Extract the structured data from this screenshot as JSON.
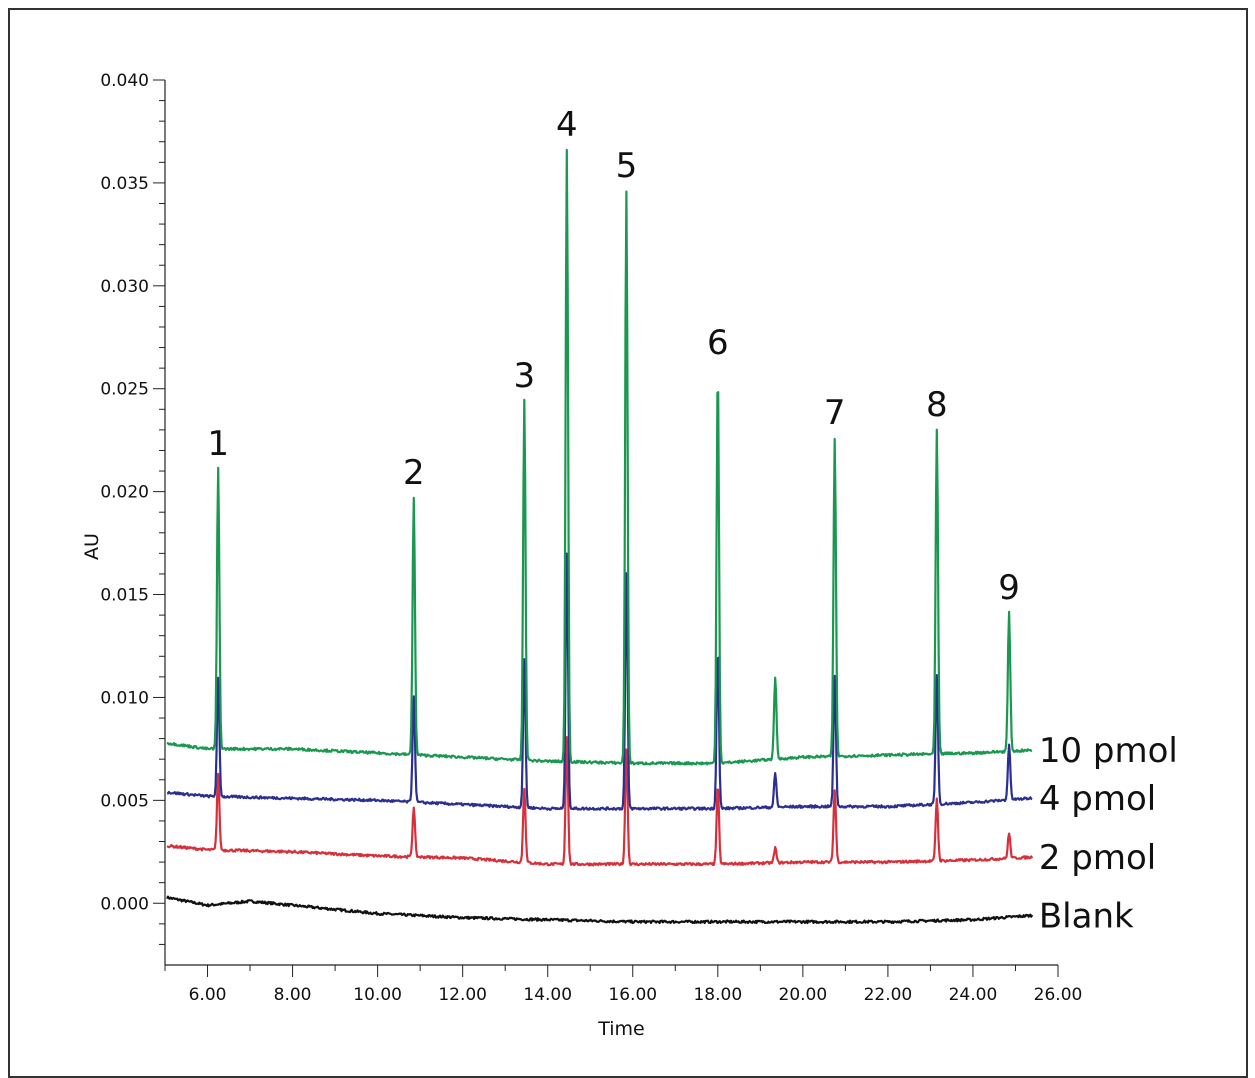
{
  "chart_data": {
    "type": "line",
    "xlabel": "Time",
    "ylabel": "AU",
    "xlim": [
      5.0,
      26.0
    ],
    "ylim": [
      -0.003,
      0.04
    ],
    "xticks": [
      "6.00",
      "8.00",
      "10.00",
      "12.00",
      "14.00",
      "16.00",
      "18.00",
      "20.00",
      "22.00",
      "24.00",
      "26.00"
    ],
    "yticks": [
      "0.000",
      "0.005",
      "0.010",
      "0.015",
      "0.020",
      "0.025",
      "0.030",
      "0.035",
      "0.040"
    ],
    "grid": false,
    "legend": "inline labels at right end of each trace",
    "peak_labels": [
      {
        "label": "1",
        "time": 6.25,
        "height_10pmol": 0.0211
      },
      {
        "label": "2",
        "time": 10.85,
        "height_10pmol": 0.0197
      },
      {
        "label": "3",
        "time": 13.45,
        "height_10pmol": 0.0244
      },
      {
        "label": "4",
        "time": 14.45,
        "height_10pmol": 0.0366
      },
      {
        "label": "5",
        "time": 15.85,
        "height_10pmol": 0.0346
      },
      {
        "label": "6",
        "time": 18.0,
        "height_10pmol": 0.026
      },
      {
        "label": "7",
        "time": 20.75,
        "height_10pmol": 0.0226
      },
      {
        "label": "8",
        "time": 23.15,
        "height_10pmol": 0.023
      },
      {
        "label": "9",
        "time": 24.85,
        "height_10pmol": 0.0141
      }
    ],
    "series": [
      {
        "name": "10 pmol",
        "color": "#1a9850",
        "baseline": [
          [
            5.0,
            0.0078
          ],
          [
            6.0,
            0.0075
          ],
          [
            8.0,
            0.0075
          ],
          [
            10.0,
            0.0073
          ],
          [
            12.0,
            0.0071
          ],
          [
            14.0,
            0.0069
          ],
          [
            16.0,
            0.0068
          ],
          [
            18.0,
            0.0068
          ],
          [
            20.0,
            0.0071
          ],
          [
            22.0,
            0.0072
          ],
          [
            24.0,
            0.0073
          ],
          [
            26.0,
            0.0075
          ]
        ],
        "peaks": [
          [
            6.25,
            0.0211
          ],
          [
            10.85,
            0.0197
          ],
          [
            13.45,
            0.0244
          ],
          [
            14.45,
            0.0366
          ],
          [
            15.85,
            0.0346
          ],
          [
            18.0,
            0.026
          ],
          [
            19.35,
            0.011
          ],
          [
            20.75,
            0.0226
          ],
          [
            23.15,
            0.023
          ],
          [
            24.85,
            0.0141
          ]
        ]
      },
      {
        "name": "4 pmol",
        "color": "#2b2f8f",
        "baseline": [
          [
            5.0,
            0.0054
          ],
          [
            6.0,
            0.0052
          ],
          [
            8.0,
            0.0051
          ],
          [
            10.0,
            0.005
          ],
          [
            12.0,
            0.0048
          ],
          [
            14.0,
            0.0046
          ],
          [
            16.0,
            0.0046
          ],
          [
            18.0,
            0.0046
          ],
          [
            20.0,
            0.0047
          ],
          [
            22.0,
            0.0047
          ],
          [
            24.0,
            0.0049
          ],
          [
            26.0,
            0.0052
          ]
        ],
        "peaks": [
          [
            6.25,
            0.0109
          ],
          [
            10.85,
            0.0101
          ],
          [
            13.45,
            0.0118
          ],
          [
            14.45,
            0.017
          ],
          [
            15.85,
            0.016
          ],
          [
            18.0,
            0.0124
          ],
          [
            19.35,
            0.0063
          ],
          [
            20.75,
            0.011
          ],
          [
            23.15,
            0.0111
          ],
          [
            24.85,
            0.0077
          ]
        ]
      },
      {
        "name": "2 pmol",
        "color": "#d7303a",
        "baseline": [
          [
            5.0,
            0.0028
          ],
          [
            6.0,
            0.0026
          ],
          [
            8.0,
            0.0025
          ],
          [
            10.0,
            0.0023
          ],
          [
            12.0,
            0.0022
          ],
          [
            14.0,
            0.0019
          ],
          [
            16.0,
            0.0019
          ],
          [
            18.0,
            0.0019
          ],
          [
            20.0,
            0.002
          ],
          [
            22.0,
            0.002
          ],
          [
            24.0,
            0.0021
          ],
          [
            26.0,
            0.0023
          ]
        ],
        "peaks": [
          [
            6.25,
            0.0063
          ],
          [
            10.85,
            0.0047
          ],
          [
            13.45,
            0.0056
          ],
          [
            14.45,
            0.0081
          ],
          [
            15.85,
            0.0075
          ],
          [
            18.0,
            0.0057
          ],
          [
            19.35,
            0.0027
          ],
          [
            20.75,
            0.0055
          ],
          [
            23.15,
            0.0051
          ],
          [
            24.85,
            0.0034
          ]
        ]
      },
      {
        "name": "Blank",
        "color": "#111111",
        "baseline": [
          [
            5.0,
            0.0003
          ],
          [
            6.0,
            -0.0001
          ],
          [
            7.0,
            0.0001
          ],
          [
            8.0,
            -0.0001
          ],
          [
            10.0,
            -0.0005
          ],
          [
            12.0,
            -0.0007
          ],
          [
            14.0,
            -0.0008
          ],
          [
            16.0,
            -0.0009
          ],
          [
            18.0,
            -0.0009
          ],
          [
            20.0,
            -0.0009
          ],
          [
            22.0,
            -0.0009
          ],
          [
            24.0,
            -0.0008
          ],
          [
            26.0,
            -0.0005
          ]
        ],
        "peaks": []
      }
    ]
  }
}
